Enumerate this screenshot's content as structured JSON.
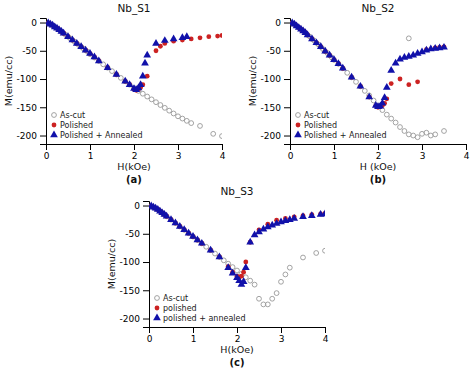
{
  "chart_data": [
    {
      "type": "scatter",
      "title": "Nb_S1",
      "x_label": "H(kOe)",
      "y_label": "M(emu/cc)",
      "xlim": [
        0,
        4
      ],
      "xticks": [
        0,
        1,
        2,
        3,
        4
      ],
      "ylim": [
        -215,
        8
      ],
      "yticks": [
        0,
        -50,
        -100,
        -150,
        -200
      ],
      "grid": false,
      "legend": "lower left",
      "annotations": [
        "(a)"
      ],
      "series": [
        {
          "name": "As-cut",
          "color": "#999999",
          "marker": "open-circle",
          "x": [
            0.05,
            0.1,
            0.15,
            0.2,
            0.25,
            0.3,
            0.35,
            0.4,
            0.45,
            0.5,
            0.55,
            0.6,
            0.65,
            0.7,
            0.75,
            0.8,
            0.85,
            0.9,
            0.95,
            1.0,
            1.1,
            1.2,
            1.3,
            1.4,
            1.5,
            1.6,
            1.7,
            1.8,
            1.9,
            2.0,
            2.1,
            2.2,
            2.3,
            2.4,
            2.5,
            2.6,
            2.7,
            2.8,
            2.9,
            3.0,
            3.1,
            3.2,
            3.3,
            3.5,
            3.8,
            4.0
          ],
          "values": [
            -1,
            -3,
            -5,
            -8,
            -10,
            -13,
            -16,
            -19,
            -22,
            -25,
            -28,
            -31,
            -34,
            -37,
            -40,
            -43,
            -46,
            -49,
            -52,
            -56,
            -62,
            -68,
            -74,
            -80,
            -86,
            -92,
            -98,
            -104,
            -110,
            -116,
            -121,
            -126,
            -131,
            -136,
            -141,
            -146,
            -151,
            -156,
            -161,
            -166,
            -170,
            -174,
            -178,
            -183,
            -197,
            -201
          ]
        },
        {
          "name": "Polished",
          "color": "#cc2222",
          "marker": "circle",
          "x": [
            0.05,
            0.1,
            0.15,
            0.2,
            0.25,
            0.3,
            0.35,
            0.4,
            0.5,
            0.6,
            0.7,
            0.8,
            0.9,
            1.0,
            1.1,
            1.2,
            1.4,
            1.6,
            1.8,
            1.9,
            2.0,
            2.05,
            2.1,
            2.15,
            2.2,
            2.3,
            2.5,
            2.6,
            2.7,
            2.9,
            3.1,
            3.3,
            3.5,
            3.7,
            3.9,
            4.0
          ],
          "values": [
            -1,
            -3,
            -5,
            -8,
            -10,
            -13,
            -16,
            -19,
            -25,
            -31,
            -37,
            -43,
            -49,
            -55,
            -61,
            -68,
            -80,
            -92,
            -104,
            -110,
            -118,
            -120,
            -118,
            -115,
            -110,
            -95,
            -50,
            -42,
            -37,
            -33,
            -31,
            -29,
            -27,
            -25,
            -24,
            -23
          ]
        },
        {
          "name": "Polished + Annealed",
          "color": "#1111aa",
          "marker": "triangle",
          "x": [
            0.05,
            0.1,
            0.15,
            0.2,
            0.25,
            0.3,
            0.35,
            0.4,
            0.5,
            0.6,
            0.7,
            0.8,
            0.9,
            1.0,
            1.1,
            1.2,
            1.4,
            1.6,
            1.8,
            1.9,
            2.0,
            2.05,
            2.1,
            2.15,
            2.2,
            2.25,
            2.3,
            2.5,
            2.7,
            2.9,
            3.1,
            3.2
          ],
          "values": [
            -1,
            -3,
            -5,
            -8,
            -10,
            -13,
            -16,
            -19,
            -25,
            -31,
            -37,
            -43,
            -49,
            -55,
            -61,
            -68,
            -80,
            -92,
            -104,
            -110,
            -117,
            -119,
            -116,
            -110,
            -95,
            -72,
            -58,
            -37,
            -32,
            -29,
            -27,
            -25
          ]
        }
      ]
    },
    {
      "type": "scatter",
      "title": "Nb_S2",
      "x_label": "H (kOe)",
      "y_label": "M(emu/cc)",
      "xlim": [
        0,
        4
      ],
      "xticks": [
        0,
        1,
        2,
        3,
        4
      ],
      "ylim": [
        -215,
        8
      ],
      "yticks": [
        0,
        -50,
        -100,
        -150,
        -200
      ],
      "grid": false,
      "legend": "lower left",
      "annotations": [
        "(b)"
      ],
      "series": [
        {
          "name": "As-cut",
          "color": "#999999",
          "marker": "open-circle",
          "x": [
            0.05,
            0.1,
            0.15,
            0.2,
            0.25,
            0.3,
            0.35,
            0.4,
            0.45,
            0.5,
            0.55,
            0.6,
            0.65,
            0.7,
            0.75,
            0.8,
            0.85,
            0.9,
            0.95,
            1.0,
            1.1,
            1.2,
            1.3,
            1.4,
            1.5,
            1.6,
            1.7,
            1.8,
            1.9,
            2.0,
            2.1,
            2.2,
            2.3,
            2.4,
            2.5,
            2.6,
            2.7,
            2.8,
            2.9,
            3.0,
            3.1,
            3.2,
            3.3,
            3.5
          ],
          "values": [
            -1,
            -3,
            -6,
            -9,
            -12,
            -15,
            -18,
            -22,
            -25,
            -29,
            -32,
            -36,
            -39,
            -43,
            -47,
            -51,
            -54,
            -58,
            -62,
            -66,
            -73,
            -81,
            -89,
            -97,
            -105,
            -113,
            -121,
            -129,
            -138,
            -147,
            -155,
            -163,
            -170,
            -177,
            -185,
            -192,
            -198,
            -200,
            -203,
            -197,
            -195,
            -200,
            -198,
            -192
          ]
        },
        {
          "name": "Polished",
          "color": "#cc2222",
          "marker": "circle",
          "x": [
            0.05,
            0.1,
            0.15,
            0.2,
            0.25,
            0.3,
            0.35,
            0.4,
            0.5,
            0.6,
            0.7,
            0.8,
            0.9,
            1.0,
            1.1,
            1.2,
            1.4,
            1.6,
            1.8,
            1.95,
            2.0,
            2.05,
            2.1,
            2.15,
            2.2,
            2.3,
            2.5,
            2.7,
            2.9,
            3.1,
            3.3,
            3.4,
            3.5
          ],
          "values": [
            -1,
            -3,
            -6,
            -9,
            -12,
            -15,
            -18,
            -22,
            -29,
            -36,
            -43,
            -51,
            -58,
            -66,
            -73,
            -81,
            -97,
            -113,
            -132,
            -147,
            -150,
            -149,
            -147,
            -143,
            -135,
            -108,
            -100,
            -110,
            -105,
            -48,
            -45,
            -44,
            -43
          ]
        },
        {
          "name": "Polished + Annealed",
          "color": "#1111aa",
          "marker": "triangle",
          "x": [
            0.05,
            0.1,
            0.15,
            0.2,
            0.25,
            0.3,
            0.35,
            0.4,
            0.5,
            0.6,
            0.7,
            0.8,
            0.9,
            1.0,
            1.1,
            1.2,
            1.4,
            1.6,
            1.8,
            1.95,
            2.0,
            2.05,
            2.1,
            2.15,
            2.2,
            2.3,
            2.4,
            2.5,
            2.6,
            2.7,
            2.8,
            2.9,
            3.0,
            3.1,
            3.2,
            3.3,
            3.4,
            3.5
          ],
          "values": [
            -1,
            -3,
            -6,
            -9,
            -12,
            -15,
            -18,
            -22,
            -29,
            -36,
            -43,
            -51,
            -58,
            -66,
            -73,
            -81,
            -97,
            -113,
            -132,
            -147,
            -149,
            -148,
            -143,
            -133,
            -115,
            -85,
            -72,
            -65,
            -62,
            -60,
            -58,
            -55,
            -52,
            -49,
            -47,
            -46,
            -45,
            -44
          ]
        },
        {
          "color": "#999999",
          "marker": "open-circle",
          "x": [
            2.7
          ],
          "values": [
            -28
          ]
        }
      ]
    },
    {
      "type": "scatter",
      "title": "Nb_S3",
      "x_label": "H(kOe)",
      "y_label": "M(emu/cc)",
      "xlim": [
        0,
        4
      ],
      "xticks": [
        0,
        1,
        2,
        3,
        4
      ],
      "ylim": [
        -215,
        8
      ],
      "yticks": [
        0,
        -50,
        -100,
        -150,
        -200
      ],
      "grid": false,
      "legend": "lower left",
      "annotations": [
        "(c)"
      ],
      "series": [
        {
          "name": "As-cut",
          "color": "#999999",
          "marker": "open-circle",
          "x": [
            0.05,
            0.1,
            0.15,
            0.2,
            0.25,
            0.3,
            0.35,
            0.4,
            0.5,
            0.6,
            0.7,
            0.8,
            0.9,
            1.0,
            1.1,
            1.2,
            1.3,
            1.4,
            1.5,
            1.6,
            1.7,
            1.8,
            1.9,
            2.0,
            2.1,
            2.2,
            2.3,
            2.4,
            2.5,
            2.6,
            2.7,
            2.8,
            2.9,
            3.0,
            3.1,
            3.2,
            3.5,
            3.8,
            4.0
          ],
          "values": [
            -1,
            -3,
            -5,
            -7,
            -10,
            -13,
            -16,
            -19,
            -25,
            -31,
            -37,
            -43,
            -49,
            -55,
            -61,
            -67,
            -73,
            -79,
            -85,
            -91,
            -97,
            -103,
            -109,
            -115,
            -121,
            -127,
            -133,
            -140,
            -165,
            -175,
            -175,
            -165,
            -155,
            -135,
            -122,
            -110,
            -92,
            -84,
            -80
          ]
        },
        {
          "name": "polished",
          "color": "#cc2222",
          "marker": "circle",
          "x": [
            0.05,
            0.1,
            0.15,
            0.2,
            0.25,
            0.3,
            0.35,
            0.4,
            0.5,
            0.6,
            0.7,
            0.8,
            0.9,
            1.0,
            1.1,
            1.2,
            1.4,
            1.6,
            1.8,
            1.9,
            2.0,
            2.05,
            2.1,
            2.15,
            2.2,
            2.3,
            2.5,
            2.7,
            2.9,
            3.1,
            3.3,
            3.5,
            3.7,
            3.9,
            4.0
          ],
          "values": [
            -1,
            -3,
            -5,
            -7,
            -10,
            -13,
            -16,
            -19,
            -25,
            -31,
            -37,
            -43,
            -49,
            -55,
            -61,
            -67,
            -79,
            -91,
            -108,
            -118,
            -125,
            -127,
            -125,
            -118,
            -100,
            -65,
            -43,
            -33,
            -26,
            -23,
            -20,
            -18,
            -16,
            -15,
            -14
          ]
        },
        {
          "name": "polished + annealed",
          "color": "#1111aa",
          "marker": "triangle",
          "x": [
            0.05,
            0.1,
            0.15,
            0.2,
            0.25,
            0.3,
            0.35,
            0.4,
            0.5,
            0.6,
            0.7,
            0.8,
            0.9,
            1.0,
            1.1,
            1.2,
            1.4,
            1.6,
            1.8,
            1.9,
            2.0,
            2.05,
            2.1,
            2.15,
            2.2,
            2.3,
            2.4,
            2.5,
            2.6,
            2.7,
            2.8,
            2.9,
            3.0,
            3.1,
            3.2,
            3.3,
            3.5,
            3.7,
            3.9,
            4.0
          ],
          "values": [
            -1,
            -3,
            -5,
            -7,
            -10,
            -13,
            -16,
            -19,
            -25,
            -31,
            -37,
            -43,
            -49,
            -55,
            -61,
            -67,
            -79,
            -91,
            -110,
            -120,
            -128,
            -133,
            -140,
            -135,
            -110,
            -65,
            -52,
            -47,
            -42,
            -38,
            -35,
            -32,
            -29,
            -27,
            -25,
            -23,
            -20,
            -18,
            -16,
            -15
          ]
        }
      ]
    }
  ]
}
